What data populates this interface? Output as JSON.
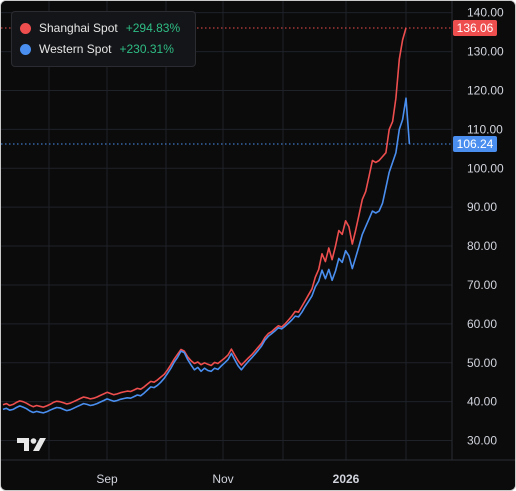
{
  "legend": {
    "items": [
      {
        "name": "Shanghai Spot",
        "change": "+294.83%",
        "color": "#ef4e4e"
      },
      {
        "name": "Western Spot",
        "change": "+230.31%",
        "color": "#4a8ff0"
      }
    ]
  },
  "logo": "tradingview-logo",
  "chart_data": {
    "type": "line",
    "x_tick_labels": [
      "Sep",
      "Nov",
      "2026"
    ],
    "y_ticks": [
      "140.00",
      "130.00",
      "120.00",
      "110.00",
      "100.00",
      "90.00",
      "80.00",
      "70.00",
      "60.00",
      "50.00",
      "40.00",
      "30.00"
    ],
    "ylim": [
      25,
      143
    ],
    "grid": true,
    "legend_position": "top-left",
    "series": [
      {
        "name": "Shanghai Spot",
        "color": "#ef4e4e",
        "last_value": "136.06",
        "values": [
          39.2,
          39.5,
          39.0,
          39.3,
          39.8,
          40.2,
          40.0,
          39.6,
          39.1,
          38.7,
          39.0,
          38.8,
          38.6,
          38.9,
          39.3,
          39.8,
          40.1,
          40.0,
          39.7,
          39.4,
          39.6,
          40.0,
          40.4,
          40.8,
          41.2,
          41.0,
          40.7,
          40.9,
          41.2,
          41.6,
          42.0,
          42.4,
          42.1,
          41.8,
          42.0,
          42.3,
          42.5,
          42.7,
          42.6,
          43.0,
          43.4,
          43.2,
          43.8,
          44.5,
          45.2,
          45.0,
          45.6,
          46.3,
          47.0,
          48.2,
          49.5,
          51.0,
          52.2,
          53.4,
          53.0,
          51.5,
          50.5,
          49.8,
          50.2,
          49.5,
          50.0,
          49.6,
          49.3,
          50.1,
          49.8,
          50.5,
          51.2,
          52.0,
          53.5,
          52.0,
          50.5,
          49.4,
          50.3,
          51.2,
          52.0,
          53.0,
          54.0,
          55.0,
          56.5,
          57.5,
          58.0,
          58.8,
          59.5,
          59.2,
          60.0,
          61.0,
          62.0,
          63.2,
          63.0,
          64.5,
          66.0,
          67.5,
          69.0,
          72.0,
          74.0,
          78.0,
          76.0,
          79.5,
          76.5,
          80.0,
          84.0,
          83.0,
          86.5,
          85.0,
          80.5,
          84.0,
          88.0,
          92.0,
          94.0,
          98.0,
          102.0,
          101.5,
          102.0,
          103.0,
          104.0,
          110.0,
          112.0,
          118.0,
          128.0,
          133.0,
          136.06
        ]
      },
      {
        "name": "Western Spot",
        "color": "#4a8ff0",
        "last_value": "106.24",
        "values": [
          38.0,
          38.3,
          37.8,
          38.0,
          38.5,
          38.9,
          38.6,
          38.2,
          37.6,
          37.2,
          37.5,
          37.3,
          37.1,
          37.4,
          37.8,
          38.2,
          38.5,
          38.4,
          38.0,
          37.7,
          37.9,
          38.3,
          38.7,
          39.1,
          39.5,
          39.3,
          39.0,
          39.2,
          39.5,
          39.9,
          40.3,
          40.7,
          40.4,
          40.1,
          40.3,
          40.6,
          40.8,
          41.0,
          40.9,
          41.3,
          41.7,
          41.5,
          42.2,
          43.0,
          43.8,
          43.6,
          44.2,
          45.0,
          46.0,
          47.3,
          48.6,
          50.2,
          51.4,
          53.0,
          52.6,
          50.8,
          49.4,
          48.2,
          48.8,
          47.8,
          48.6,
          48.0,
          47.8,
          48.6,
          48.3,
          49.2,
          50.0,
          50.8,
          52.4,
          50.8,
          49.2,
          48.2,
          49.3,
          50.3,
          51.2,
          52.2,
          53.2,
          54.3,
          55.8,
          56.8,
          57.5,
          58.2,
          59.0,
          58.7,
          59.4,
          60.2,
          61.0,
          62.0,
          61.8,
          63.0,
          64.5,
          65.8,
          67.2,
          69.5,
          71.0,
          73.8,
          71.6,
          74.0,
          71.2,
          73.6,
          76.8,
          75.8,
          78.8,
          77.5,
          74.2,
          77.0,
          80.0,
          83.0,
          85.0,
          87.0,
          89.0,
          88.5,
          89.0,
          91.0,
          95.0,
          99.0,
          101.5,
          104.0,
          110.0,
          112.5,
          118.0,
          106.24
        ]
      }
    ]
  }
}
